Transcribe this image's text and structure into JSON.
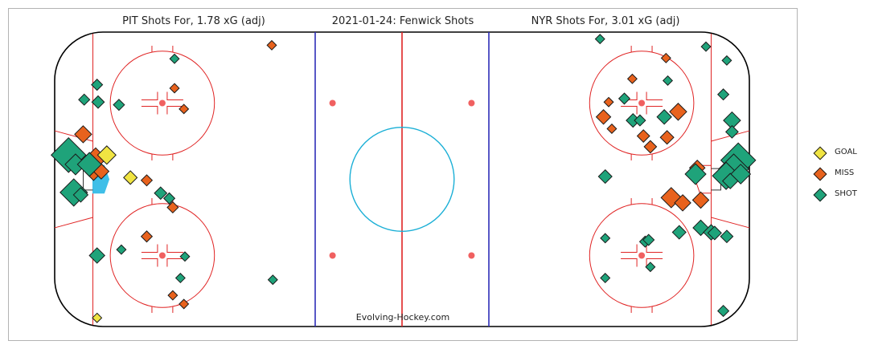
{
  "header": {
    "left_title": "PIT Shots For, 1.78 xG (adj)",
    "center_title": "2021-01-24:  Fenwick Shots",
    "right_title": "NYR Shots For, 3.01 xG (adj)"
  },
  "watermark": "Evolving-Hockey.com",
  "colors": {
    "goal": "#f0e442",
    "miss": "#e8621d",
    "shot": "#1fa37a",
    "outline": "#1a1a1a",
    "redline": "#e02424",
    "blueline": "#2d2db8",
    "center_circle": "#1aafd6",
    "crease": "#3fbfe8",
    "rink_border": "#000000"
  },
  "legend": [
    {
      "label": "GOAL",
      "event": "goal"
    },
    {
      "label": "MISS",
      "event": "miss"
    },
    {
      "label": "SHOT",
      "event": "shot"
    }
  ],
  "chart_data": {
    "type": "scatter",
    "title": "2021-01-24:  Fenwick Shots",
    "xlabel": "",
    "ylabel": "",
    "xlim": [
      -100,
      100
    ],
    "ylim": [
      -42.5,
      42.5
    ],
    "size_encodes": "xG",
    "series": [
      {
        "name": "GOAL",
        "team": "PIT",
        "points": [
          {
            "x": -85.0,
            "y": 7.0,
            "xg": 0.1
          },
          {
            "x": -78.2,
            "y": 0.5,
            "xg": 0.04
          },
          {
            "x": -87.8,
            "y": -40.0,
            "xg": 0.01
          }
        ]
      },
      {
        "name": "MISS",
        "team": "PIT",
        "points": [
          {
            "x": -91.8,
            "y": 13.0,
            "xg": 0.08
          },
          {
            "x": -88.2,
            "y": 6.0,
            "xg": 0.15
          },
          {
            "x": -88.8,
            "y": 2.5,
            "xg": 0.12
          },
          {
            "x": -86.6,
            "y": 2.3,
            "xg": 0.06
          },
          {
            "x": -73.5,
            "y": -0.3,
            "xg": 0.02
          },
          {
            "x": -66.0,
            "y": -8.1,
            "xg": 0.02
          },
          {
            "x": -73.5,
            "y": -16.5,
            "xg": 0.02
          },
          {
            "x": -65.5,
            "y": 26.3,
            "xg": 0.01
          },
          {
            "x": -62.8,
            "y": 20.3,
            "xg": 0.01
          },
          {
            "x": -66.0,
            "y": -33.5,
            "xg": 0.01
          },
          {
            "x": -62.8,
            "y": -36.0,
            "xg": 0.01
          }
        ]
      },
      {
        "name": "SHOT",
        "team": "PIT",
        "points": [
          {
            "x": -96.0,
            "y": 7.0,
            "xg": 0.5
          },
          {
            "x": -94.0,
            "y": 4.3,
            "xg": 0.14
          },
          {
            "x": -90.0,
            "y": 4.3,
            "xg": 0.2
          },
          {
            "x": -94.5,
            "y": -3.8,
            "xg": 0.28
          },
          {
            "x": -92.5,
            "y": -4.5,
            "xg": 0.05
          },
          {
            "x": -87.8,
            "y": 27.3,
            "xg": 0.02
          },
          {
            "x": -91.5,
            "y": 23.0,
            "xg": 0.02
          },
          {
            "x": -87.5,
            "y": 22.3,
            "xg": 0.03
          },
          {
            "x": -81.5,
            "y": 21.5,
            "xg": 0.02
          },
          {
            "x": -65.5,
            "y": 34.8,
            "xg": 0.01
          },
          {
            "x": -69.5,
            "y": -4.0,
            "xg": 0.03
          },
          {
            "x": -67.0,
            "y": -5.5,
            "xg": 0.02
          },
          {
            "x": -87.8,
            "y": -22.0,
            "xg": 0.06
          },
          {
            "x": -80.8,
            "y": -20.3,
            "xg": 0.01
          },
          {
            "x": -62.5,
            "y": -22.3,
            "xg": 0.01
          },
          {
            "x": -63.8,
            "y": -28.5,
            "xg": 0.01
          }
        ]
      },
      {
        "name": "MISS",
        "team": "NYR",
        "points": [
          {
            "x": 85.0,
            "y": 3.3,
            "xg": 0.06
          },
          {
            "x": 77.5,
            "y": -5.3,
            "xg": 0.13
          },
          {
            "x": 86.0,
            "y": -6.0,
            "xg": 0.07
          },
          {
            "x": 80.8,
            "y": -6.8,
            "xg": 0.07
          },
          {
            "x": 79.5,
            "y": 19.5,
            "xg": 0.08
          },
          {
            "x": 76.3,
            "y": 12.1,
            "xg": 0.04
          },
          {
            "x": 58.0,
            "y": 18.0,
            "xg": 0.05
          },
          {
            "x": 66.3,
            "y": 29.0,
            "xg": 0.01
          },
          {
            "x": 69.5,
            "y": 12.5,
            "xg": 0.03
          },
          {
            "x": 71.5,
            "y": 9.4,
            "xg": 0.03
          },
          {
            "x": 60.4,
            "y": 14.6,
            "xg": 0.01
          },
          {
            "x": 59.5,
            "y": 22.3,
            "xg": 0.01
          },
          {
            "x": 76.0,
            "y": 35.0,
            "xg": 0.01
          },
          {
            "x": -37.5,
            "y": 38.7,
            "xg": 0.01
          }
        ]
      },
      {
        "name": "SHOT",
        "team": "NYR",
        "points": [
          {
            "x": 96.8,
            "y": 5.5,
            "xg": 0.5
          },
          {
            "x": 95.5,
            "y": 3.0,
            "xg": 0.35
          },
          {
            "x": 93.3,
            "y": 1.0,
            "xg": 0.28
          },
          {
            "x": 97.5,
            "y": 1.5,
            "xg": 0.12
          },
          {
            "x": 94.5,
            "y": -0.5,
            "xg": 0.06
          },
          {
            "x": 84.5,
            "y": 1.5,
            "xg": 0.14
          },
          {
            "x": 95.0,
            "y": 17.0,
            "xg": 0.08
          },
          {
            "x": 95.0,
            "y": 13.7,
            "xg": 0.03
          },
          {
            "x": 75.5,
            "y": 18.0,
            "xg": 0.05
          },
          {
            "x": 66.5,
            "y": 17.0,
            "xg": 0.04
          },
          {
            "x": 68.5,
            "y": 17.0,
            "xg": 0.02
          },
          {
            "x": 58.5,
            "y": 0.8,
            "xg": 0.04
          },
          {
            "x": 64.0,
            "y": 23.3,
            "xg": 0.02
          },
          {
            "x": 92.5,
            "y": 24.5,
            "xg": 0.02
          },
          {
            "x": 93.5,
            "y": 34.3,
            "xg": 0.01
          },
          {
            "x": 86.0,
            "y": -14.0,
            "xg": 0.06
          },
          {
            "x": 89.0,
            "y": -15.3,
            "xg": 0.06
          },
          {
            "x": 90.0,
            "y": -15.5,
            "xg": 0.04
          },
          {
            "x": 79.8,
            "y": -15.3,
            "xg": 0.04
          },
          {
            "x": 93.5,
            "y": -16.5,
            "xg": 0.03
          },
          {
            "x": 70.0,
            "y": -18.0,
            "xg": 0.02
          },
          {
            "x": 71.0,
            "y": -17.5,
            "xg": 0.02
          },
          {
            "x": 58.5,
            "y": -17.0,
            "xg": 0.01
          },
          {
            "x": 92.5,
            "y": -38.0,
            "xg": 0.02
          },
          {
            "x": 58.5,
            "y": -28.5,
            "xg": 0.01
          },
          {
            "x": 71.5,
            "y": -25.3,
            "xg": 0.01
          },
          {
            "x": 76.5,
            "y": 28.5,
            "xg": 0.01
          },
          {
            "x": 87.5,
            "y": 38.3,
            "xg": 0.01
          },
          {
            "x": 57.0,
            "y": 40.5,
            "xg": 0.01
          },
          {
            "x": -37.2,
            "y": -29.0,
            "xg": 0.01
          }
        ]
      }
    ]
  }
}
